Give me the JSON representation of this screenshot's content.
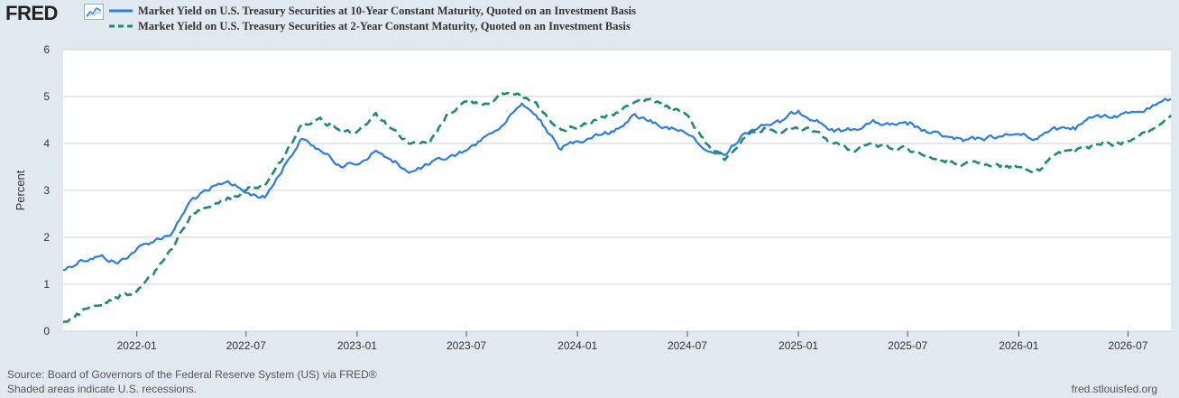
{
  "brand": {
    "logo_text": "FRED",
    "logo_icon": "line-chart-icon"
  },
  "chart_data": {
    "type": "line",
    "title": "",
    "xlabel": "",
    "ylabel": "Percent",
    "ylim": [
      0,
      6
    ],
    "xlim": [
      "2021-09-01",
      "2026-09-10"
    ],
    "y_ticks": [
      0,
      1,
      2,
      3,
      4,
      5,
      6
    ],
    "x_ticks": [
      "2022-01",
      "2022-07",
      "2023-01",
      "2023-07",
      "2024-01",
      "2024-07",
      "2025-01",
      "2025-07",
      "2026-01",
      "2026-07"
    ],
    "grid": true,
    "legend_position": "top-left",
    "series": [
      {
        "name": "Market Yield on U.S. Treasury Securities at 10-Year Constant Maturity, Quoted on an Investment Basis",
        "color": "#2b7de0",
        "style": "solid",
        "x": [
          "2021-09-01",
          "2021-10-01",
          "2021-11-01",
          "2021-12-01",
          "2022-01-01",
          "2022-02-01",
          "2022-03-01",
          "2022-04-01",
          "2022-05-01",
          "2022-06-01",
          "2022-07-01",
          "2022-08-01",
          "2022-09-01",
          "2022-10-01",
          "2022-11-01",
          "2022-12-01",
          "2023-01-01",
          "2023-02-01",
          "2023-03-01",
          "2023-04-01",
          "2023-05-01",
          "2023-06-01",
          "2023-07-01",
          "2023-08-01",
          "2023-09-01",
          "2023-10-01",
          "2023-11-01",
          "2023-12-01",
          "2024-01-01",
          "2024-02-01",
          "2024-03-01",
          "2024-04-01",
          "2024-05-01",
          "2024-06-01",
          "2024-07-01",
          "2024-08-01",
          "2024-09-01",
          "2024-10-01",
          "2024-11-01",
          "2024-12-01",
          "2025-01-01",
          "2025-02-01",
          "2025-03-01",
          "2025-04-01",
          "2025-05-01",
          "2025-06-01",
          "2025-07-01",
          "2025-08-01",
          "2025-09-01",
          "2025-10-01",
          "2025-11-01",
          "2025-12-01",
          "2026-01-01",
          "2026-02-01",
          "2026-03-01",
          "2026-04-01",
          "2026-05-01",
          "2026-06-01",
          "2026-07-01",
          "2026-08-01",
          "2026-09-10"
        ],
        "values": [
          1.3,
          1.52,
          1.6,
          1.45,
          1.75,
          1.95,
          2.1,
          2.8,
          3.0,
          3.2,
          2.95,
          2.85,
          3.5,
          4.1,
          3.85,
          3.55,
          3.55,
          3.85,
          3.6,
          3.4,
          3.55,
          3.7,
          3.85,
          4.15,
          4.4,
          4.85,
          4.5,
          3.9,
          4.05,
          4.2,
          4.25,
          4.6,
          4.5,
          4.3,
          4.2,
          3.85,
          3.75,
          4.2,
          4.4,
          4.45,
          4.7,
          4.5,
          4.25,
          4.3,
          4.45,
          4.4,
          4.4,
          4.25,
          4.15,
          4.05,
          4.1,
          4.15,
          4.2,
          4.1,
          4.35,
          4.35,
          4.55,
          4.55,
          4.65,
          4.75,
          4.95
        ]
      },
      {
        "name": "Market Yield on U.S. Treasury Securities at 2-Year Constant Maturity, Quoted on an Investment Basis",
        "color": "#1f8a70",
        "style": "dashed",
        "x": [
          "2021-09-01",
          "2021-10-01",
          "2021-11-01",
          "2021-12-01",
          "2022-01-01",
          "2022-02-01",
          "2022-03-01",
          "2022-04-01",
          "2022-05-01",
          "2022-06-01",
          "2022-07-01",
          "2022-08-01",
          "2022-09-01",
          "2022-10-01",
          "2022-11-01",
          "2022-12-01",
          "2023-01-01",
          "2023-02-01",
          "2023-03-01",
          "2023-04-01",
          "2023-05-01",
          "2023-06-01",
          "2023-07-01",
          "2023-08-01",
          "2023-09-01",
          "2023-10-01",
          "2023-11-01",
          "2023-12-01",
          "2024-01-01",
          "2024-02-01",
          "2024-03-01",
          "2024-04-01",
          "2024-05-01",
          "2024-06-01",
          "2024-07-01",
          "2024-08-01",
          "2024-09-01",
          "2024-10-01",
          "2024-11-01",
          "2024-12-01",
          "2025-01-01",
          "2025-02-01",
          "2025-03-01",
          "2025-04-01",
          "2025-05-01",
          "2025-06-01",
          "2025-07-01",
          "2025-08-01",
          "2025-09-01",
          "2025-10-01",
          "2025-11-01",
          "2025-12-01",
          "2026-01-01",
          "2026-02-01",
          "2026-03-01",
          "2026-04-01",
          "2026-05-01",
          "2026-06-01",
          "2026-07-01",
          "2026-08-01",
          "2026-09-10"
        ],
        "values": [
          0.2,
          0.4,
          0.55,
          0.7,
          0.85,
          1.3,
          1.75,
          2.5,
          2.65,
          2.85,
          3.0,
          3.1,
          3.7,
          4.4,
          4.55,
          4.3,
          4.25,
          4.65,
          4.3,
          4.0,
          4.0,
          4.65,
          4.9,
          4.85,
          5.05,
          5.05,
          4.75,
          4.35,
          4.3,
          4.5,
          4.6,
          4.85,
          4.95,
          4.75,
          4.6,
          4.0,
          3.65,
          4.1,
          4.25,
          4.25,
          4.3,
          4.25,
          4.0,
          3.85,
          4.0,
          3.9,
          3.9,
          3.75,
          3.6,
          3.55,
          3.55,
          3.5,
          3.5,
          3.45,
          3.75,
          3.9,
          3.95,
          4.0,
          4.05,
          4.2,
          4.6
        ]
      }
    ]
  },
  "footer": {
    "source": "Source: Board of Governors of the Federal Reserve System (US) via FRED®",
    "note": "Shaded areas indicate U.S. recessions.",
    "site": "fred.stlouisfed.org"
  }
}
